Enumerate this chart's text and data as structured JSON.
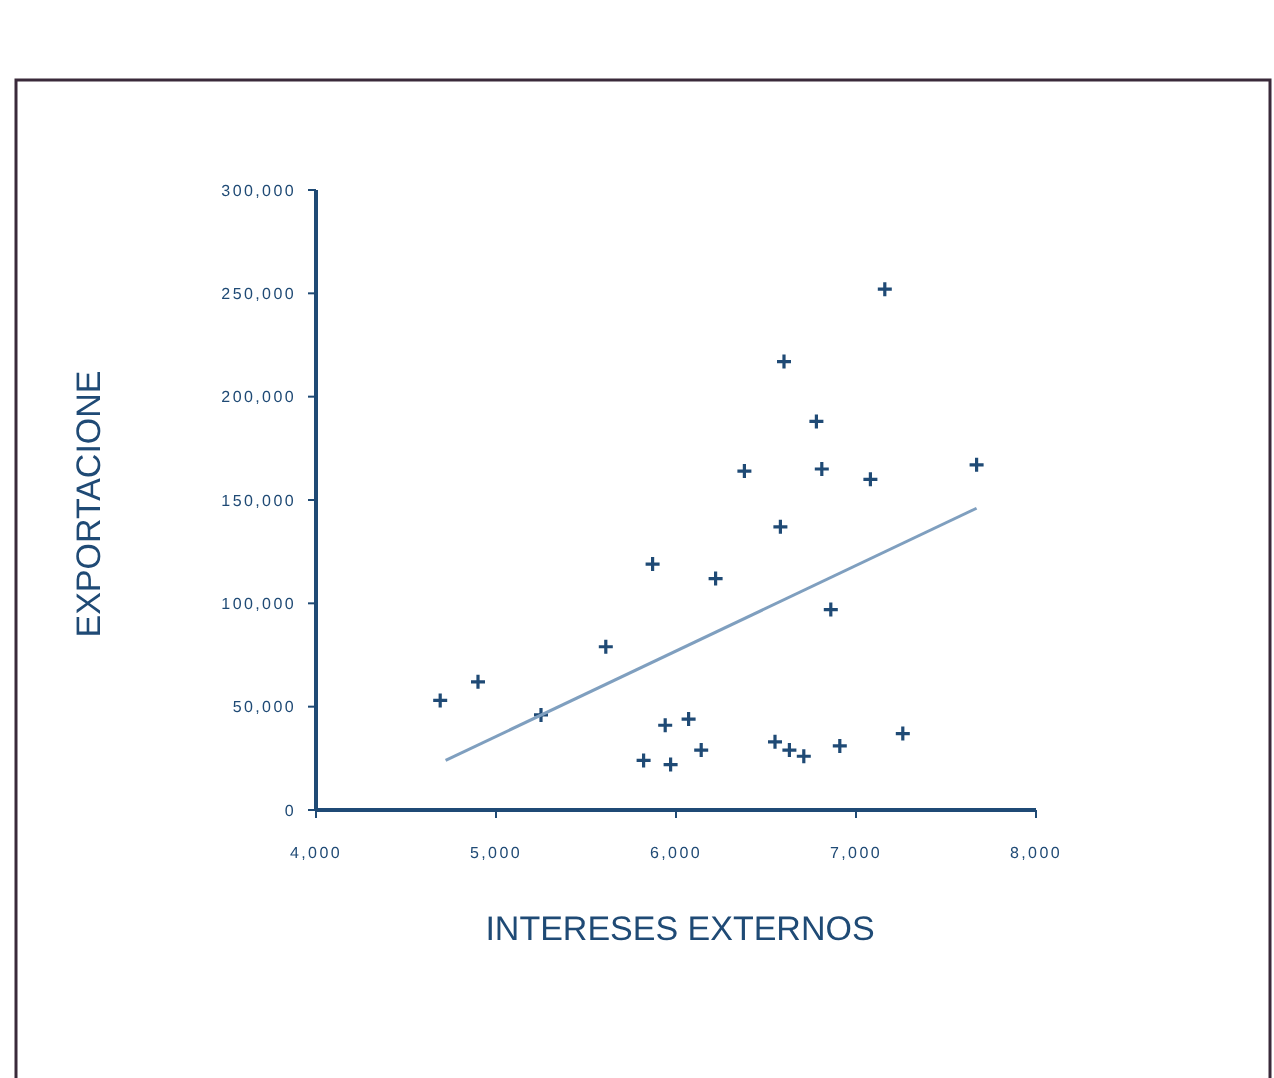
{
  "chart_data": {
    "type": "scatter",
    "xlabel": "INTERESES EXTERNOS",
    "ylabel": "EXPORTACIONE",
    "xlim": [
      4000,
      8000
    ],
    "ylim": [
      0,
      300000
    ],
    "xticks": [
      {
        "value": 4000,
        "label": "4,000"
      },
      {
        "value": 5000,
        "label": "5,000"
      },
      {
        "value": 6000,
        "label": "6,000"
      },
      {
        "value": 7000,
        "label": "7,000"
      },
      {
        "value": 8000,
        "label": "8,000"
      }
    ],
    "yticks": [
      0,
      {
        "value": 50000,
        "label": "50,000"
      },
      {
        "value": 100000,
        "label": "100,000"
      },
      {
        "value": 150000,
        "label": "150,000"
      },
      {
        "value": 200000,
        "label": "200,000"
      },
      {
        "value": 250000,
        "label": "250,000"
      },
      {
        "value": 300000,
        "label": "300,000"
      }
    ],
    "grid": false,
    "marker": "cross",
    "series": [
      {
        "color": "#1f4a75",
        "x": [
          4690,
          4900,
          5250,
          5610,
          5870,
          5820,
          5940,
          5970,
          6070,
          6140,
          6220,
          6380,
          6580,
          6600,
          6550,
          6630,
          6710,
          6780,
          6810,
          6860,
          6910,
          7080,
          7160,
          7260,
          7670
        ],
        "values": [
          53000,
          62000,
          46000,
          79000,
          119000,
          24000,
          41000,
          22000,
          44000,
          29000,
          112000,
          164000,
          137000,
          217000,
          33000,
          29000,
          26000,
          188000,
          165000,
          97000,
          31000,
          160000,
          252000,
          37000,
          167000
        ]
      },
      {
        "type": "line",
        "marker": "none",
        "color": "#7f9fbf",
        "x": [
          4720,
          7670
        ],
        "values": [
          24000,
          146000
        ]
      }
    ]
  }
}
